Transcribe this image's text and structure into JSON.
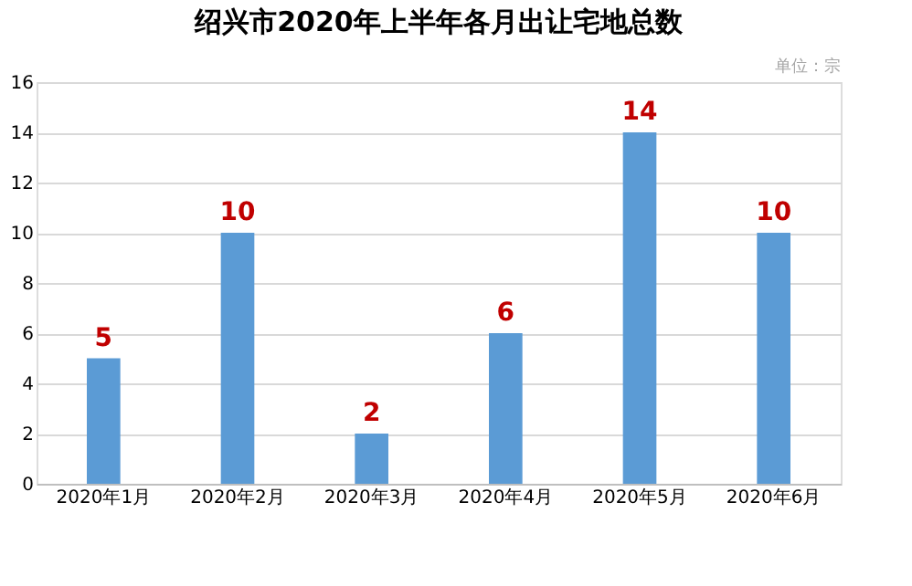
{
  "chart_data": {
    "type": "bar",
    "title": "绍兴市2020年上半年各月出让宅地总数",
    "annotations": [
      "单位：宗"
    ],
    "categories": [
      "2020年1月",
      "2020年2月",
      "2020年3月",
      "2020年4月",
      "2020年5月",
      "2020年6月"
    ],
    "values": [
      5,
      10,
      2,
      6,
      14,
      10
    ],
    "color": "#5b9bd5",
    "ylim": [
      0,
      16
    ],
    "yticks": [
      0,
      2,
      4,
      6,
      8,
      10,
      12,
      14,
      16
    ],
    "grid": "y",
    "data_labels": true
  }
}
